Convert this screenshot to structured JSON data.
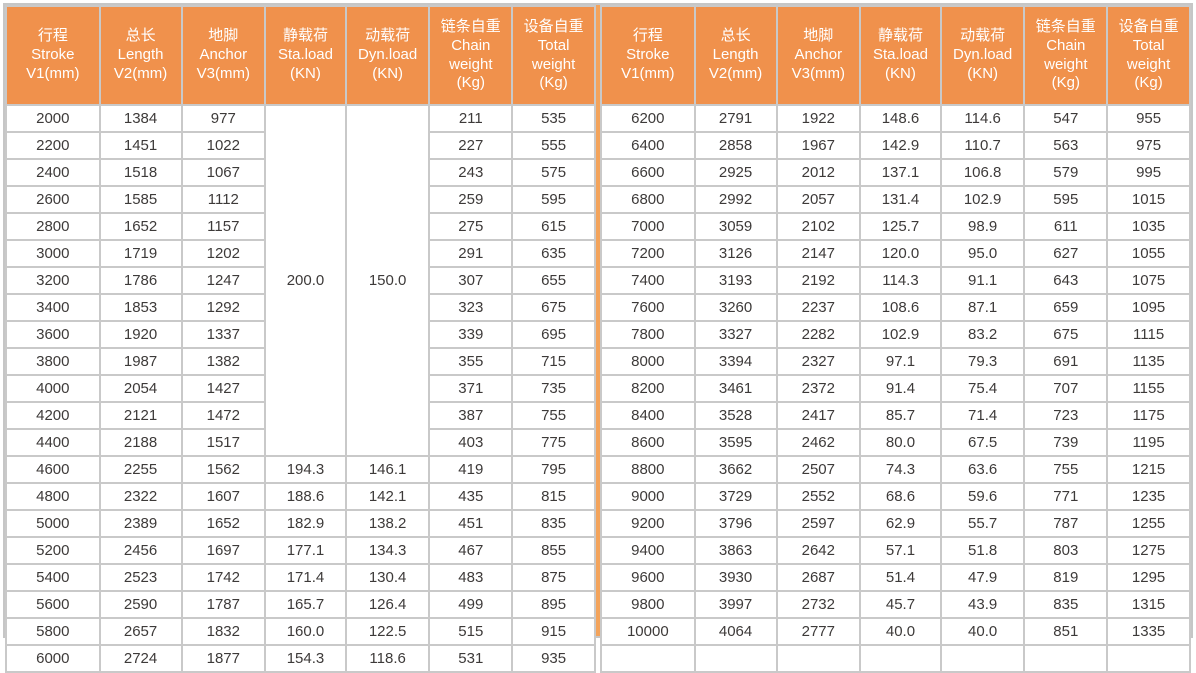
{
  "colors": {
    "header_bg": "#f0914c",
    "header_text": "#ffffff",
    "divider": "#f3a35b",
    "grid_line": "#c9c9c9",
    "cell_text": "#3d3a39",
    "cell_bg": "#ffffff"
  },
  "chart_data": {
    "type": "table",
    "columns": [
      {
        "lines": [
          "行程",
          "Stroke",
          "V1(mm)"
        ]
      },
      {
        "lines": [
          "总长",
          "Length",
          "V2(mm)"
        ]
      },
      {
        "lines": [
          "地脚",
          "Anchor",
          "V3(mm)"
        ]
      },
      {
        "lines": [
          "静载荷",
          "Sta.load",
          "(KN)"
        ]
      },
      {
        "lines": [
          "动载荷",
          "Dyn.load",
          "(KN)"
        ]
      },
      {
        "lines": [
          "链条自重",
          "Chain",
          "weight",
          "(Kg)"
        ]
      },
      {
        "lines": [
          "设备自重",
          "Total",
          "weight",
          "(Kg)"
        ]
      }
    ],
    "left_rows": [
      {
        "cells": [
          {
            "v": "2000"
          },
          {
            "v": "1384"
          },
          {
            "v": "977"
          },
          {
            "v": "200.0",
            "rowspan": 13
          },
          {
            "v": "150.0",
            "rowspan": 13
          },
          {
            "v": "211"
          },
          {
            "v": "535"
          }
        ]
      },
      {
        "cells": [
          {
            "v": "2200"
          },
          {
            "v": "1451"
          },
          {
            "v": "1022"
          },
          {
            "v": "227"
          },
          {
            "v": "555"
          }
        ]
      },
      {
        "cells": [
          {
            "v": "2400"
          },
          {
            "v": "1518"
          },
          {
            "v": "1067"
          },
          {
            "v": "243"
          },
          {
            "v": "575"
          }
        ]
      },
      {
        "cells": [
          {
            "v": "2600"
          },
          {
            "v": "1585"
          },
          {
            "v": "1112"
          },
          {
            "v": "259"
          },
          {
            "v": "595"
          }
        ]
      },
      {
        "cells": [
          {
            "v": "2800"
          },
          {
            "v": "1652"
          },
          {
            "v": "1157"
          },
          {
            "v": "275"
          },
          {
            "v": "615"
          }
        ]
      },
      {
        "cells": [
          {
            "v": "3000"
          },
          {
            "v": "1719"
          },
          {
            "v": "1202"
          },
          {
            "v": "291"
          },
          {
            "v": "635"
          }
        ]
      },
      {
        "cells": [
          {
            "v": "3200"
          },
          {
            "v": "1786"
          },
          {
            "v": "1247"
          },
          {
            "v": "307"
          },
          {
            "v": "655"
          }
        ]
      },
      {
        "cells": [
          {
            "v": "3400"
          },
          {
            "v": "1853"
          },
          {
            "v": "1292"
          },
          {
            "v": "323"
          },
          {
            "v": "675"
          }
        ]
      },
      {
        "cells": [
          {
            "v": "3600"
          },
          {
            "v": "1920"
          },
          {
            "v": "1337"
          },
          {
            "v": "339"
          },
          {
            "v": "695"
          }
        ]
      },
      {
        "cells": [
          {
            "v": "3800"
          },
          {
            "v": "1987"
          },
          {
            "v": "1382"
          },
          {
            "v": "355"
          },
          {
            "v": "715"
          }
        ]
      },
      {
        "cells": [
          {
            "v": "4000"
          },
          {
            "v": "2054"
          },
          {
            "v": "1427"
          },
          {
            "v": "371"
          },
          {
            "v": "735"
          }
        ]
      },
      {
        "cells": [
          {
            "v": "4200"
          },
          {
            "v": "2121"
          },
          {
            "v": "1472"
          },
          {
            "v": "387"
          },
          {
            "v": "755"
          }
        ]
      },
      {
        "cells": [
          {
            "v": "4400"
          },
          {
            "v": "2188"
          },
          {
            "v": "1517"
          },
          {
            "v": "403"
          },
          {
            "v": "775"
          }
        ]
      },
      {
        "cells": [
          {
            "v": "4600"
          },
          {
            "v": "2255"
          },
          {
            "v": "1562"
          },
          {
            "v": "194.3"
          },
          {
            "v": "146.1"
          },
          {
            "v": "419"
          },
          {
            "v": "795"
          }
        ]
      },
      {
        "cells": [
          {
            "v": "4800"
          },
          {
            "v": "2322"
          },
          {
            "v": "1607"
          },
          {
            "v": "188.6"
          },
          {
            "v": "142.1"
          },
          {
            "v": "435"
          },
          {
            "v": "815"
          }
        ]
      },
      {
        "cells": [
          {
            "v": "5000"
          },
          {
            "v": "2389"
          },
          {
            "v": "1652"
          },
          {
            "v": "182.9"
          },
          {
            "v": "138.2"
          },
          {
            "v": "451"
          },
          {
            "v": "835"
          }
        ]
      },
      {
        "cells": [
          {
            "v": "5200"
          },
          {
            "v": "2456"
          },
          {
            "v": "1697"
          },
          {
            "v": "177.1"
          },
          {
            "v": "134.3"
          },
          {
            "v": "467"
          },
          {
            "v": "855"
          }
        ]
      },
      {
        "cells": [
          {
            "v": "5400"
          },
          {
            "v": "2523"
          },
          {
            "v": "1742"
          },
          {
            "v": "171.4"
          },
          {
            "v": "130.4"
          },
          {
            "v": "483"
          },
          {
            "v": "875"
          }
        ]
      },
      {
        "cells": [
          {
            "v": "5600"
          },
          {
            "v": "2590"
          },
          {
            "v": "1787"
          },
          {
            "v": "165.7"
          },
          {
            "v": "126.4"
          },
          {
            "v": "499"
          },
          {
            "v": "895"
          }
        ]
      },
      {
        "cells": [
          {
            "v": "5800"
          },
          {
            "v": "2657"
          },
          {
            "v": "1832"
          },
          {
            "v": "160.0"
          },
          {
            "v": "122.5"
          },
          {
            "v": "515"
          },
          {
            "v": "915"
          }
        ]
      },
      {
        "cells": [
          {
            "v": "6000"
          },
          {
            "v": "2724"
          },
          {
            "v": "1877"
          },
          {
            "v": "154.3"
          },
          {
            "v": "118.6"
          },
          {
            "v": "531"
          },
          {
            "v": "935"
          }
        ]
      }
    ],
    "right_rows": [
      {
        "cells": [
          {
            "v": "6200"
          },
          {
            "v": "2791"
          },
          {
            "v": "1922"
          },
          {
            "v": "148.6"
          },
          {
            "v": "114.6"
          },
          {
            "v": "547"
          },
          {
            "v": "955"
          }
        ]
      },
      {
        "cells": [
          {
            "v": "6400"
          },
          {
            "v": "2858"
          },
          {
            "v": "1967"
          },
          {
            "v": "142.9"
          },
          {
            "v": "110.7"
          },
          {
            "v": "563"
          },
          {
            "v": "975"
          }
        ]
      },
      {
        "cells": [
          {
            "v": "6600"
          },
          {
            "v": "2925"
          },
          {
            "v": "2012"
          },
          {
            "v": "137.1"
          },
          {
            "v": "106.8"
          },
          {
            "v": "579"
          },
          {
            "v": "995"
          }
        ]
      },
      {
        "cells": [
          {
            "v": "6800"
          },
          {
            "v": "2992"
          },
          {
            "v": "2057"
          },
          {
            "v": "131.4"
          },
          {
            "v": "102.9"
          },
          {
            "v": "595"
          },
          {
            "v": "1015"
          }
        ]
      },
      {
        "cells": [
          {
            "v": "7000"
          },
          {
            "v": "3059"
          },
          {
            "v": "2102"
          },
          {
            "v": "125.7"
          },
          {
            "v": "98.9"
          },
          {
            "v": "611"
          },
          {
            "v": "1035"
          }
        ]
      },
      {
        "cells": [
          {
            "v": "7200"
          },
          {
            "v": "3126"
          },
          {
            "v": "2147"
          },
          {
            "v": "120.0"
          },
          {
            "v": "95.0"
          },
          {
            "v": "627"
          },
          {
            "v": "1055"
          }
        ]
      },
      {
        "cells": [
          {
            "v": "7400"
          },
          {
            "v": "3193"
          },
          {
            "v": "2192"
          },
          {
            "v": "114.3"
          },
          {
            "v": "91.1"
          },
          {
            "v": "643"
          },
          {
            "v": "1075"
          }
        ]
      },
      {
        "cells": [
          {
            "v": "7600"
          },
          {
            "v": "3260"
          },
          {
            "v": "2237"
          },
          {
            "v": "108.6"
          },
          {
            "v": "87.1"
          },
          {
            "v": "659"
          },
          {
            "v": "1095"
          }
        ]
      },
      {
        "cells": [
          {
            "v": "7800"
          },
          {
            "v": "3327"
          },
          {
            "v": "2282"
          },
          {
            "v": "102.9"
          },
          {
            "v": "83.2"
          },
          {
            "v": "675"
          },
          {
            "v": "1115"
          }
        ]
      },
      {
        "cells": [
          {
            "v": "8000"
          },
          {
            "v": "3394"
          },
          {
            "v": "2327"
          },
          {
            "v": "97.1"
          },
          {
            "v": "79.3"
          },
          {
            "v": "691"
          },
          {
            "v": "1135"
          }
        ]
      },
      {
        "cells": [
          {
            "v": "8200"
          },
          {
            "v": "3461"
          },
          {
            "v": "2372"
          },
          {
            "v": "91.4"
          },
          {
            "v": "75.4"
          },
          {
            "v": "707"
          },
          {
            "v": "1155"
          }
        ]
      },
      {
        "cells": [
          {
            "v": "8400"
          },
          {
            "v": "3528"
          },
          {
            "v": "2417"
          },
          {
            "v": "85.7"
          },
          {
            "v": "71.4"
          },
          {
            "v": "723"
          },
          {
            "v": "1175"
          }
        ]
      },
      {
        "cells": [
          {
            "v": "8600"
          },
          {
            "v": "3595"
          },
          {
            "v": "2462"
          },
          {
            "v": "80.0"
          },
          {
            "v": "67.5"
          },
          {
            "v": "739"
          },
          {
            "v": "1195"
          }
        ]
      },
      {
        "cells": [
          {
            "v": "8800"
          },
          {
            "v": "3662"
          },
          {
            "v": "2507"
          },
          {
            "v": "74.3"
          },
          {
            "v": "63.6"
          },
          {
            "v": "755"
          },
          {
            "v": "1215"
          }
        ]
      },
      {
        "cells": [
          {
            "v": "9000"
          },
          {
            "v": "3729"
          },
          {
            "v": "2552"
          },
          {
            "v": "68.6"
          },
          {
            "v": "59.6"
          },
          {
            "v": "771"
          },
          {
            "v": "1235"
          }
        ]
      },
      {
        "cells": [
          {
            "v": "9200"
          },
          {
            "v": "3796"
          },
          {
            "v": "2597"
          },
          {
            "v": "62.9"
          },
          {
            "v": "55.7"
          },
          {
            "v": "787"
          },
          {
            "v": "1255"
          }
        ]
      },
      {
        "cells": [
          {
            "v": "9400"
          },
          {
            "v": "3863"
          },
          {
            "v": "2642"
          },
          {
            "v": "57.1"
          },
          {
            "v": "51.8"
          },
          {
            "v": "803"
          },
          {
            "v": "1275"
          }
        ]
      },
      {
        "cells": [
          {
            "v": "9600"
          },
          {
            "v": "3930"
          },
          {
            "v": "2687"
          },
          {
            "v": "51.4"
          },
          {
            "v": "47.9"
          },
          {
            "v": "819"
          },
          {
            "v": "1295"
          }
        ]
      },
      {
        "cells": [
          {
            "v": "9800"
          },
          {
            "v": "3997"
          },
          {
            "v": "2732"
          },
          {
            "v": "45.7"
          },
          {
            "v": "43.9"
          },
          {
            "v": "835"
          },
          {
            "v": "1315"
          }
        ]
      },
      {
        "cells": [
          {
            "v": "10000"
          },
          {
            "v": "4064"
          },
          {
            "v": "2777"
          },
          {
            "v": "40.0"
          },
          {
            "v": "40.0"
          },
          {
            "v": "851"
          },
          {
            "v": "1335"
          }
        ]
      },
      {
        "cells": [
          {
            "v": ""
          },
          {
            "v": ""
          },
          {
            "v": ""
          },
          {
            "v": ""
          },
          {
            "v": ""
          },
          {
            "v": ""
          },
          {
            "v": ""
          }
        ]
      }
    ]
  }
}
